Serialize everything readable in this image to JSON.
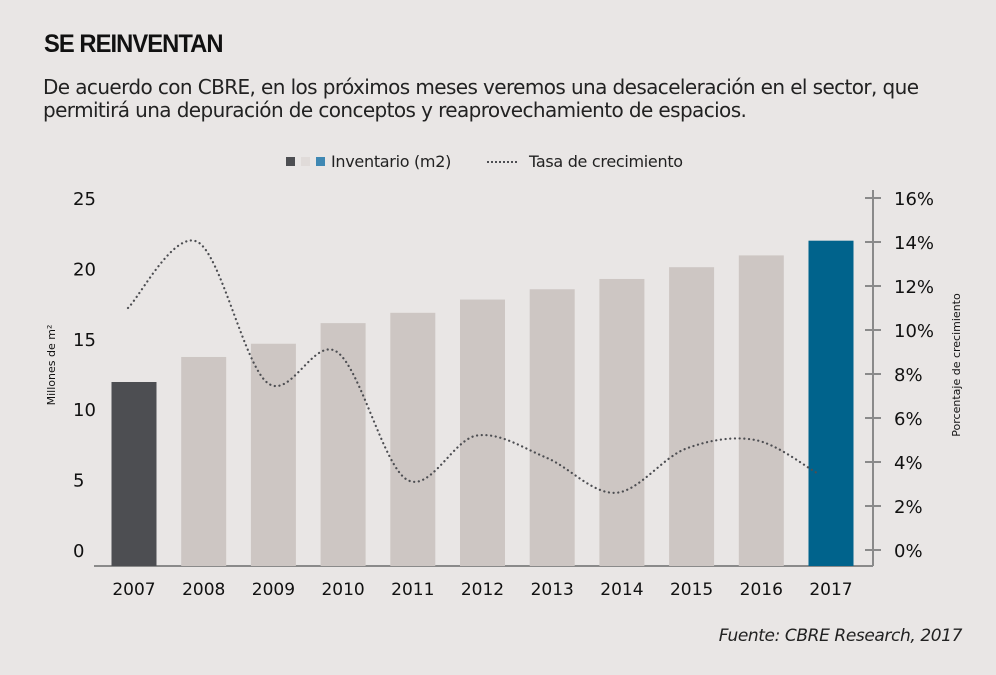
{
  "header": {
    "title": "SE REINVENTAN",
    "subtitle": "De acuerdo con CBRE, en los próximos meses veremos una desaceleración en el sector, que permitirá una depuración de conceptos y reaprovechamiento de espacios."
  },
  "legend": {
    "bars_label": "Inventario (m2)",
    "line_label": "Tasa de crecimiento"
  },
  "source": "Fuente: CBRE Research, 2017",
  "colors": {
    "bar_first": "#4d4e52",
    "bar_middle": "#cdc6c3",
    "bar_last": "#00638c",
    "legend_blue": "#3f88b3",
    "line": "#4d4e52",
    "axis": "#8a8a8a"
  },
  "chart_data": {
    "type": "bar",
    "title": "SE REINVENTAN",
    "categories": [
      "2007",
      "2008",
      "2009",
      "2010",
      "2011",
      "2012",
      "2013",
      "2014",
      "2015",
      "2016",
      "2017"
    ],
    "series": [
      {
        "name": "Inventario (m2)",
        "type": "bar",
        "axis": "left",
        "values": [
          12.5,
          14.2,
          15.1,
          16.5,
          17.2,
          18.1,
          18.8,
          19.5,
          20.3,
          21.1,
          22.1
        ]
      },
      {
        "name": "Tasa de crecimiento",
        "type": "line",
        "style": "dotted",
        "axis": "right",
        "values": [
          11.0,
          14.0,
          7.6,
          9.0,
          3.2,
          5.2,
          4.2,
          2.6,
          4.6,
          5.0,
          3.5
        ]
      }
    ],
    "ylabel": "Millones de m²",
    "ylim": [
      0,
      25
    ],
    "yticks": [
      "0",
      "5",
      "10",
      "15",
      "20",
      "25"
    ],
    "y2label": "Porcentaje de crecimiento",
    "y2lim": [
      0,
      16
    ],
    "y2ticks": [
      "0%",
      "2%",
      "4%",
      "6%",
      "8%",
      "10%",
      "12%",
      "14%",
      "16%"
    ],
    "xlabel": "",
    "grid": false,
    "legend_position": "top-center"
  }
}
